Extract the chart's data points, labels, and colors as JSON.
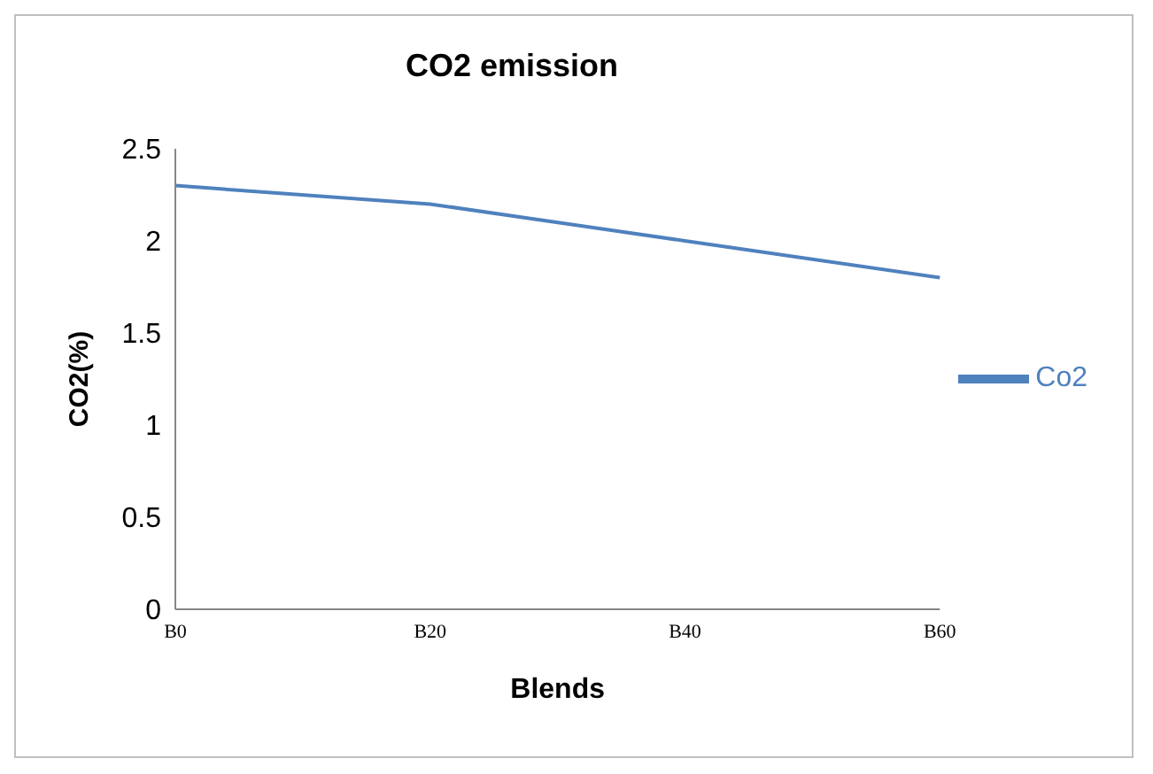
{
  "chart_data": {
    "type": "line",
    "title": "CO2 emission",
    "xlabel": "Blends",
    "ylabel": "CO2(%)",
    "categories": [
      "B0",
      "B20",
      "B40",
      "B60"
    ],
    "series": [
      {
        "name": "Co2",
        "color": "#4f81bd",
        "values": [
          2.3,
          2.2,
          2.0,
          1.8
        ]
      }
    ],
    "ylim": [
      0,
      2.5
    ],
    "yticks": [
      0,
      0.5,
      1,
      1.5,
      2,
      2.5
    ],
    "grid": false,
    "legend": "right",
    "marker": "none"
  }
}
